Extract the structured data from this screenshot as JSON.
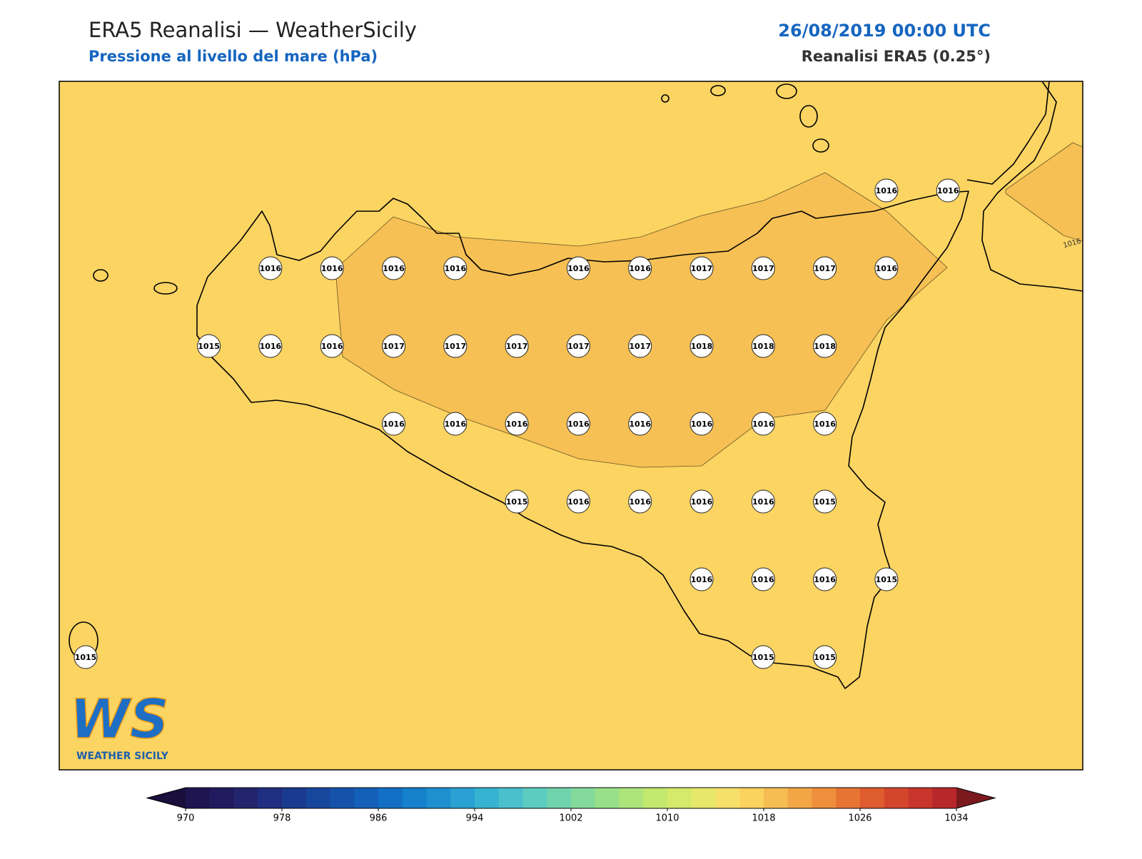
{
  "header": {
    "title": "ERA5 Reanalisi — WeatherSicily",
    "subtitle": "Pressione al livello del mare (hPa)",
    "datetime": "26/08/2019 00:00 UTC",
    "source": "Reanalisi ERA5 (0.25°)"
  },
  "map": {
    "background_color": "#fbd462",
    "high_color": "#f6c054",
    "grid": [
      [
        null,
        null,
        null,
        null,
        null,
        null,
        null,
        null,
        null,
        null,
        null,
        null,
        null,
        1016,
        1016
      ],
      [
        null,
        null,
        null,
        1016,
        1016,
        1016,
        1016,
        null,
        1016,
        1016,
        1017,
        1017,
        1017,
        1016,
        null
      ],
      [
        null,
        null,
        1015,
        1016,
        1016,
        1017,
        1017,
        1017,
        1017,
        1017,
        1018,
        1018,
        1018,
        null,
        null
      ],
      [
        null,
        null,
        null,
        null,
        null,
        1016,
        1016,
        1016,
        1016,
        1016,
        1016,
        1016,
        1016,
        null,
        null
      ],
      [
        null,
        null,
        null,
        null,
        null,
        null,
        null,
        1015,
        1016,
        1016,
        1016,
        1016,
        1015,
        null,
        null
      ],
      [
        null,
        null,
        null,
        null,
        null,
        null,
        null,
        null,
        null,
        null,
        1016,
        1016,
        1016,
        1015,
        null
      ],
      [
        1015,
        null,
        null,
        null,
        null,
        null,
        null,
        null,
        null,
        null,
        null,
        1015,
        1015,
        null,
        null
      ]
    ],
    "contour_labels": [
      1016
    ]
  },
  "logo": {
    "initials": "WS",
    "name": "WEATHER SICILY"
  },
  "colorbar": {
    "range": [
      970,
      1034
    ],
    "colors": [
      "#1e1450",
      "#221a5e",
      "#23246e",
      "#1f2e80",
      "#1a3a8f",
      "#17469d",
      "#1553ab",
      "#1460b8",
      "#126fc4",
      "#1580cb",
      "#1e90d0",
      "#2aa1d3",
      "#36b3d3",
      "#49c0cc",
      "#5ccbc0",
      "#6fd3ae",
      "#83da9b",
      "#98e089",
      "#ade57a",
      "#c2e86e",
      "#d5ea6a",
      "#e7e86b",
      "#f7e06a",
      "#fbd25e",
      "#f6bd52",
      "#f2a646",
      "#ef8e3c",
      "#e87434",
      "#df5c2e",
      "#d4462b",
      "#c8352a",
      "#b8282b"
    ],
    "under_color": "#1a0f3c",
    "over_color": "#7a1a1f",
    "ticks": [
      970,
      978,
      986,
      994,
      1002,
      1010,
      1018,
      1026,
      1034
    ]
  }
}
